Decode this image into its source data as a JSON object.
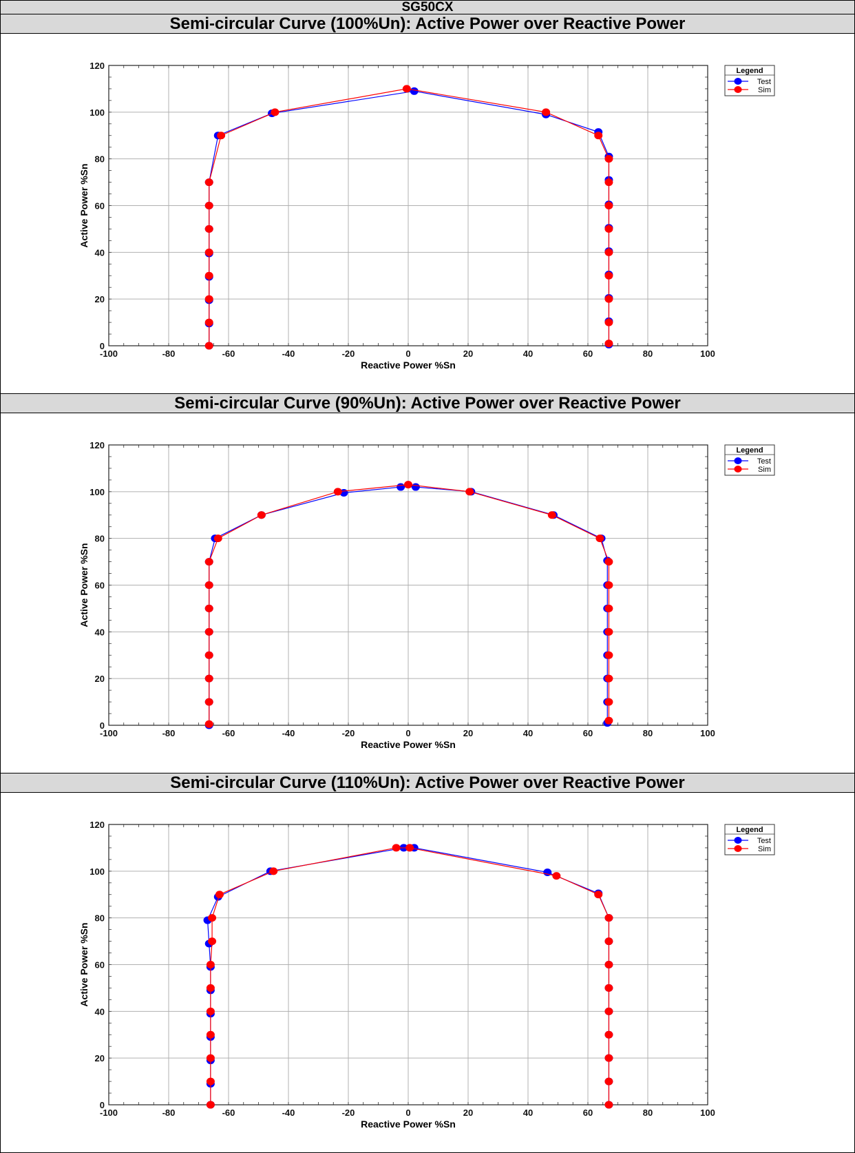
{
  "document": {
    "title": "SG50CX"
  },
  "colors": {
    "test": "#0000ff",
    "sim": "#ff0000",
    "header_bg": "#d9d9d9",
    "grid": "#b0b0b0"
  },
  "chart_data": [
    {
      "type": "line",
      "section_title": "Semi-circular Curve (100%Un): Active Power over Reactive Power",
      "xlabel": "Reactive Power %Sn",
      "ylabel": "Active Power %Sn",
      "xlim": [
        -100,
        100
      ],
      "ylim": [
        0,
        120
      ],
      "xticks": [
        -100,
        -80,
        -60,
        -40,
        -20,
        0,
        20,
        40,
        60,
        80,
        100
      ],
      "yticks": [
        0,
        20,
        40,
        60,
        80,
        100,
        120
      ],
      "grid": true,
      "legend": {
        "title": "Legend",
        "position": "outside-top-right",
        "entries": [
          "Test",
          "Sim"
        ]
      },
      "series": [
        {
          "name": "Test",
          "color": "#0000ff",
          "x": [
            -66.5,
            -66.5,
            -66.5,
            -66.5,
            -66.5,
            -66.5,
            -66.5,
            -66.5,
            -63.5,
            -45.5,
            2,
            46,
            63.5,
            67,
            67,
            67,
            67,
            67,
            67,
            67,
            67,
            67
          ],
          "y": [
            0,
            9.5,
            19.5,
            29.5,
            39.5,
            50,
            60,
            70,
            90,
            99.5,
            109,
            99,
            91.5,
            81,
            71,
            60.5,
            50.5,
            40.5,
            30.5,
            20.5,
            10.5,
            0.5
          ]
        },
        {
          "name": "Sim",
          "color": "#ff0000",
          "x": [
            -66.5,
            -66.5,
            -66.5,
            -66.5,
            -66.5,
            -66.5,
            -66.5,
            -66.5,
            -62.5,
            -44.5,
            -0.5,
            46,
            63.5,
            67,
            67,
            67,
            67,
            67,
            67,
            67,
            67,
            67
          ],
          "y": [
            0,
            10,
            20,
            30,
            40,
            50,
            60,
            70,
            90,
            100,
            110,
            100,
            90,
            80,
            70,
            60,
            50,
            40,
            30,
            20,
            10,
            1
          ]
        }
      ]
    },
    {
      "type": "line",
      "section_title": "Semi-circular Curve (90%Un): Active Power over Reactive Power",
      "xlabel": "Reactive Power %Sn",
      "ylabel": "Active Power %Sn",
      "xlim": [
        -100,
        100
      ],
      "ylim": [
        0,
        120
      ],
      "xticks": [
        -100,
        -80,
        -60,
        -40,
        -20,
        0,
        20,
        40,
        60,
        80,
        100
      ],
      "yticks": [
        0,
        20,
        40,
        60,
        80,
        100,
        120
      ],
      "grid": true,
      "legend": {
        "title": "Legend",
        "position": "outside-top-right",
        "entries": [
          "Test",
          "Sim"
        ]
      },
      "series": [
        {
          "name": "Test",
          "color": "#0000ff",
          "x": [
            -66.5,
            -66.5,
            -66.5,
            -66.5,
            -66.5,
            -66.5,
            -66.5,
            -66.5,
            -64.5,
            -49,
            -21.5,
            -2.5,
            2.5,
            21,
            48.5,
            64.5,
            66.5,
            66.5,
            66.5,
            66.5,
            66.5,
            66.5,
            66.5,
            66.5
          ],
          "y": [
            0,
            10,
            20,
            30,
            40,
            50,
            60,
            70,
            80,
            90,
            99.5,
            102,
            102,
            100,
            90,
            80,
            70.5,
            60,
            50,
            40,
            30,
            20,
            10,
            1
          ]
        },
        {
          "name": "Sim",
          "color": "#ff0000",
          "x": [
            -66.5,
            -66.5,
            -66.5,
            -66.5,
            -66.5,
            -66.5,
            -66.5,
            -66.5,
            -63.5,
            -49,
            -23.5,
            0,
            20.5,
            48,
            64,
            67,
            67,
            67,
            67,
            67,
            67,
            67,
            67
          ],
          "y": [
            0.5,
            10,
            20,
            30,
            40,
            50,
            60,
            70,
            80,
            90,
            100,
            103,
            100,
            90,
            80,
            70,
            60,
            50,
            40,
            30,
            20,
            10,
            2
          ]
        }
      ]
    },
    {
      "type": "line",
      "section_title": "Semi-circular Curve (110%Un): Active Power over Reactive Power",
      "xlabel": "Reactive Power %Sn",
      "ylabel": "Active Power %Sn",
      "xlim": [
        -100,
        100
      ],
      "ylim": [
        0,
        120
      ],
      "xticks": [
        -100,
        -80,
        -60,
        -40,
        -20,
        0,
        20,
        40,
        60,
        80,
        100
      ],
      "yticks": [
        0,
        20,
        40,
        60,
        80,
        100,
        120
      ],
      "grid": true,
      "legend": {
        "title": "Legend",
        "position": "outside-top-right",
        "entries": [
          "Test",
          "Sim"
        ]
      },
      "series": [
        {
          "name": "Test",
          "color": "#0000ff",
          "x": [
            -66,
            -66,
            -66,
            -66,
            -66,
            -66,
            -66,
            -66.5,
            -67,
            -63.5,
            -46,
            -1.5,
            2,
            46.5,
            63.5,
            67,
            67,
            67,
            67,
            67,
            67,
            67,
            67,
            67
          ],
          "y": [
            0,
            9,
            19,
            29,
            39,
            49,
            59,
            69,
            79,
            89,
            100,
            110,
            110,
            99.5,
            90.5,
            80,
            70,
            60,
            50,
            40,
            30,
            20,
            10,
            0
          ]
        },
        {
          "name": "Sim",
          "color": "#ff0000",
          "x": [
            -66,
            -66,
            -66,
            -66,
            -66,
            -66,
            -66,
            -65.5,
            -65.5,
            -63,
            -45,
            -4,
            0.5,
            49.5,
            63.5,
            67,
            67,
            67,
            67,
            67,
            67,
            67,
            67,
            67
          ],
          "y": [
            0,
            10,
            20,
            30,
            40,
            50,
            60,
            70,
            80,
            90,
            100,
            110,
            110,
            98,
            90,
            80,
            70,
            60,
            50,
            40,
            30,
            20,
            10,
            0
          ]
        }
      ]
    }
  ]
}
